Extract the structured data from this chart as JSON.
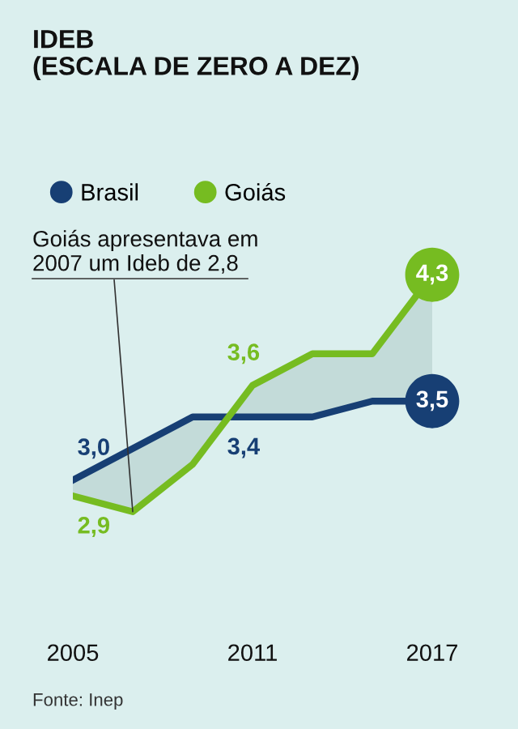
{
  "chart_data": {
    "type": "line",
    "title": "IDEB\n(ESCALA DE ZERO A DEZ)",
    "x": [
      2005,
      2007,
      2009,
      2011,
      2013,
      2015,
      2017
    ],
    "xlim": [
      2005,
      2017
    ],
    "xticks": [
      2005,
      2011,
      2017
    ],
    "series": [
      {
        "name": "Brasil",
        "color": "#173f74",
        "values": [
          3.0,
          3.2,
          3.4,
          3.4,
          3.4,
          3.5,
          3.5
        ],
        "value_labels": [
          "3,0",
          null,
          null,
          "3,4",
          null,
          null,
          "3,5"
        ]
      },
      {
        "name": "Goiás",
        "color": "#76bc21",
        "values": [
          2.9,
          2.8,
          3.1,
          3.6,
          3.8,
          3.8,
          4.3
        ],
        "value_labels": [
          "2,9",
          null,
          null,
          "3,6",
          null,
          null,
          "4,3"
        ],
        "lower": [
          3.0,
          3.2,
          3.4,
          3.4,
          3.4,
          3.5,
          3.5
        ],
        "upper": [
          2.9,
          2.8,
          3.1,
          3.6,
          3.8,
          3.8,
          4.3
        ]
      }
    ],
    "annotations": [
      {
        "text": "Goiás apresentava em\n2007 um Ideb de 2,8",
        "x": 2007,
        "y": 2.8
      },
      "Fonte: Inep"
    ],
    "legend": "top left",
    "grid": false,
    "marker": "none",
    "line_style": "solid"
  }
}
